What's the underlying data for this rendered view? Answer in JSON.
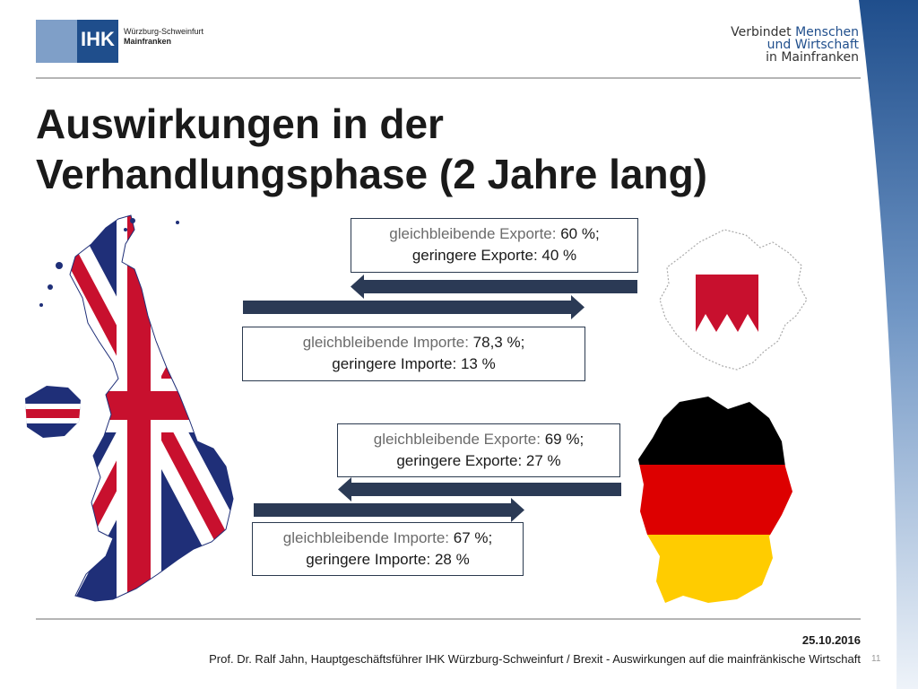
{
  "header": {
    "logo": {
      "mark": "IHK",
      "org_line1": "Würzburg-Schweinfurt",
      "org_line2": "Mainfranken"
    },
    "tagline": {
      "line1_pre": "Verbindet ",
      "line1_accent": "Menschen",
      "line2": "und Wirtschaft",
      "line3": "in Mainfranken"
    }
  },
  "title": {
    "line1": "Auswirkungen in der",
    "line2": "Verhandlungsphase (2 Jahre lang)"
  },
  "mainfranken": {
    "exports": {
      "line1_label": "gleichbleibende Exporte: ",
      "line1_value": "60 %;",
      "line2_label": "geringere Exporte: ",
      "line2_value": "40 %"
    },
    "imports": {
      "line1_label": "gleichbleibende Importe: ",
      "line1_value": "78,3 %;",
      "line2_label": "geringere Importe: ",
      "line2_value": "13 %"
    }
  },
  "germany": {
    "exports": {
      "line1_label": "gleichbleibende Exporte:  ",
      "line1_value": "69 %;",
      "line2_label": "geringere Exporte: ",
      "line2_value": "27 %"
    },
    "imports": {
      "line1_label": "gleichbleibende Importe: ",
      "line1_value": "67 %;",
      "line2_label": "geringere Importe: ",
      "line2_value": "28  %"
    }
  },
  "colors": {
    "arrow": "#2b3a55",
    "ihk_blue": "#1f4e8c",
    "uk_blue": "#1f2f78",
    "uk_red": "#c8102e",
    "franken_red": "#c8102e",
    "de_black": "#000000",
    "de_red": "#dd0000",
    "de_gold": "#ffcc00"
  },
  "footer": {
    "date": "25.10.2016",
    "text": "Prof. Dr. Ralf Jahn, Hauptgeschäftsführer IHK Würzburg-Schweinfurt / Brexit - Auswirkungen auf die mainfränkische Wirtschaft",
    "page": "11"
  }
}
